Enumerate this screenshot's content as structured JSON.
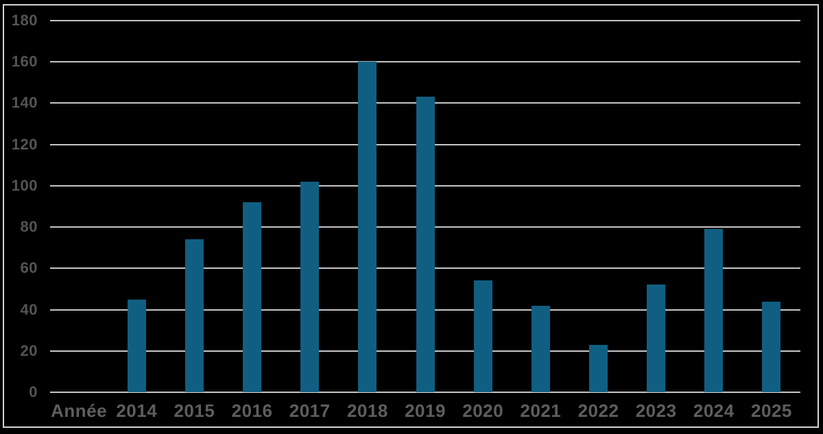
{
  "chart_data": {
    "type": "bar",
    "title": "",
    "x_axis_label": "Année",
    "categories": [
      "2014",
      "2015",
      "2016",
      "2017",
      "2018",
      "2019",
      "2020",
      "2021",
      "2022",
      "2023",
      "2024",
      "2025"
    ],
    "values": [
      45,
      74,
      92,
      102,
      160,
      143,
      54,
      42,
      23,
      52,
      79,
      44
    ],
    "y_ticks": [
      0,
      20,
      40,
      60,
      80,
      100,
      120,
      140,
      160,
      180
    ],
    "ylim": [
      0,
      180
    ],
    "grid": true,
    "legend_position": "none",
    "colors": {
      "bar": "#105f82",
      "background": "#000000",
      "gridline": "#d9d9d9",
      "frame_border": "#d4d4d4",
      "y_tick_label": "#545454",
      "x_tick_label": "#5e5e5e"
    }
  }
}
